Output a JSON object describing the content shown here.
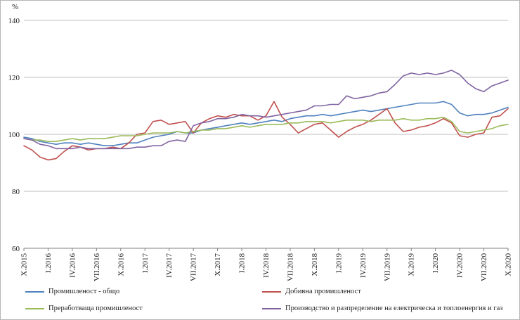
{
  "chart_data": {
    "type": "line",
    "title": "",
    "ylabel": "%",
    "ylim": [
      60,
      140
    ],
    "yticks": [
      60,
      80,
      100,
      120,
      140
    ],
    "grid": true,
    "legend_position": "bottom",
    "n_points": 61,
    "x_tick_every": 3,
    "x_tick_labels": [
      "X.2015",
      "I.2016",
      "IV.2016",
      "VII.2016",
      "X.2016",
      "I.2017",
      "IV.2017",
      "VII.2017",
      "X.2017",
      "I.2018",
      "IV.2018",
      "VII.2018",
      "X.2018",
      "I.2019",
      "IV.2019",
      "VII.2019",
      "X.2019",
      "I.2020",
      "IV.2020",
      "VII.2020",
      "X.2020"
    ],
    "series": [
      {
        "name": "Промишленост - общо",
        "color": "#4F81BD",
        "values": [
          99,
          98.5,
          97.5,
          97,
          96.5,
          97,
          97,
          96.5,
          97,
          96.5,
          96,
          96,
          96.5,
          97,
          97,
          98,
          99,
          99.5,
          100,
          101,
          100.5,
          100.5,
          101.5,
          102,
          102.5,
          103,
          103.5,
          104,
          103.5,
          104,
          104.5,
          105,
          104.5,
          105.5,
          106,
          106.5,
          106.5,
          107,
          106.5,
          107,
          107.5,
          108,
          108.5,
          108,
          108.5,
          109,
          109.5,
          110,
          110.5,
          111,
          111,
          111,
          111.5,
          110.5,
          107.5,
          106.5,
          107,
          107,
          107.5,
          108.5,
          109.5
        ]
      },
      {
        "name": "Добивна промишленост",
        "color": "#C0504D",
        "values": [
          96,
          94.5,
          92,
          91,
          91.5,
          94,
          96,
          95.5,
          94.5,
          95,
          95,
          95.5,
          95,
          97,
          100,
          100.5,
          104.5,
          105,
          103.5,
          104,
          104.5,
          100.5,
          104,
          105.5,
          106.5,
          106,
          107,
          106.5,
          106.5,
          105,
          106.5,
          111.5,
          106,
          103.5,
          100.5,
          102,
          103.5,
          104,
          101.5,
          99,
          101,
          102.5,
          103.5,
          105,
          107,
          109,
          104,
          101,
          101.5,
          102.5,
          103,
          104,
          105.5,
          104,
          99.5,
          99,
          100,
          100.5,
          106,
          106.5,
          109
        ]
      },
      {
        "name": "Преработваща промишленост",
        "color": "#9BBB59",
        "values": [
          98.5,
          98,
          98,
          97.5,
          97.5,
          98,
          98.5,
          98,
          98.5,
          98.5,
          98.5,
          99,
          99.5,
          99.5,
          99.5,
          100,
          100.5,
          100.5,
          100.5,
          101,
          100.5,
          101,
          101.5,
          101.5,
          102,
          102,
          102.5,
          103,
          102.5,
          103,
          103.5,
          103.5,
          103.5,
          104,
          104,
          104.5,
          104.5,
          104.5,
          104,
          104.5,
          105,
          105,
          105,
          104.5,
          105,
          105,
          105,
          105.5,
          105,
          105,
          105.5,
          105.5,
          106,
          104.5,
          101,
          100.5,
          101,
          101.5,
          102,
          103,
          103.5
        ]
      },
      {
        "name": "Производство и разпределение на електрическа и топлоенергия и газ",
        "color": "#8064A2",
        "values": [
          98.5,
          98,
          96.5,
          96,
          95,
          95,
          95,
          95.5,
          95,
          95,
          95,
          95,
          95,
          95,
          95.5,
          95.5,
          96,
          96,
          97.5,
          98,
          97.5,
          103,
          104,
          104.5,
          105.5,
          105.5,
          106,
          107,
          106.5,
          106.5,
          106,
          106.5,
          107,
          107.5,
          108,
          108.5,
          110,
          110,
          110.5,
          110.5,
          113.5,
          112.5,
          113,
          113.5,
          114.5,
          115,
          117.5,
          120.5,
          121.5,
          121,
          121.5,
          121,
          121.5,
          122.5,
          121,
          118,
          116,
          115,
          117,
          118,
          119
        ]
      }
    ]
  }
}
